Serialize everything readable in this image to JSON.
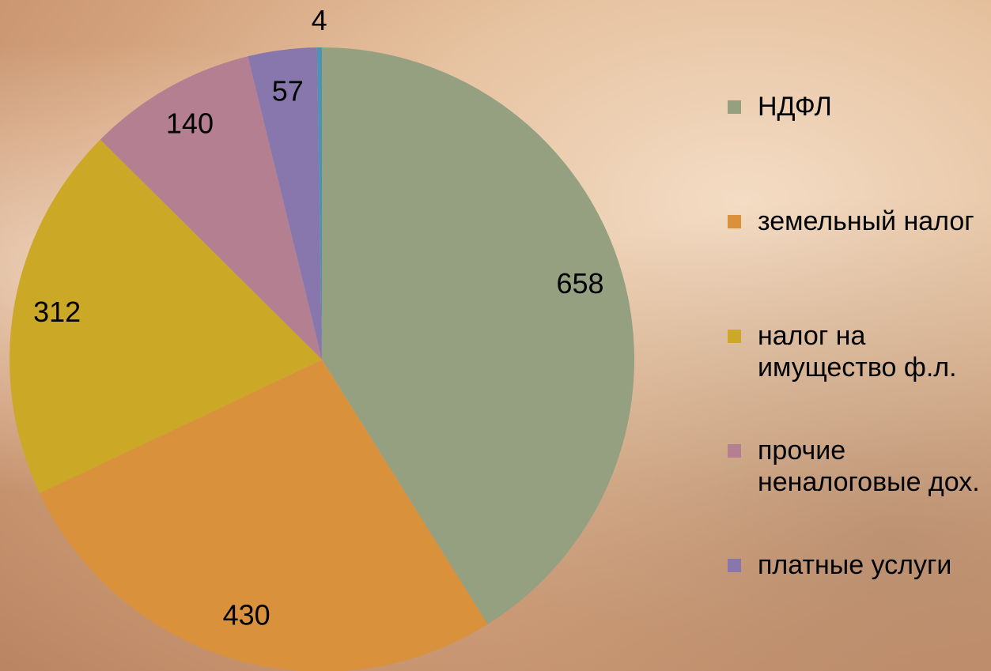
{
  "chart_data": {
    "type": "pie",
    "categories": [
      "НДФЛ",
      "земельный налог",
      "налог на имущество ф.л.",
      "прочие неналоговые дох.",
      "платные услуги",
      null
    ],
    "values": [
      658,
      430,
      312,
      140,
      57,
      4
    ],
    "colors": [
      "#94a07f",
      "#d9913c",
      "#cca827",
      "#b57f92",
      "#8877ad",
      "#4f93b4"
    ],
    "legend": "right"
  }
}
